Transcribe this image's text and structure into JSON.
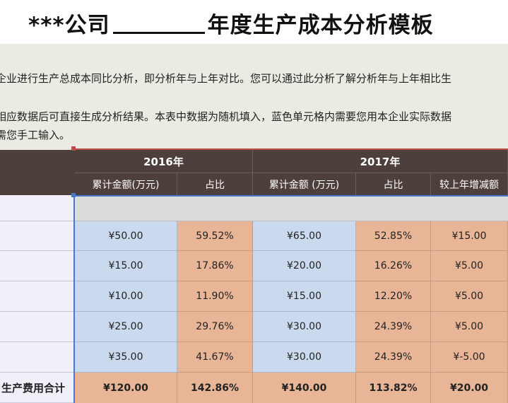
{
  "title": {
    "prefix": "***公司",
    "suffix": "年度生产成本分析模板"
  },
  "description": {
    "line1": "企业进行生产总成本同比分析，即分析年与上年对比。您可以通过此分析了解分析年与上年相比生",
    "line2": "相应数据后可直接生成分析结果。本表中数据为随机填入，蓝色单元格内需要您用本企业实际数据",
    "line3": "需您手工输入。"
  },
  "table": {
    "year_2016": "2016年",
    "year_2017": "2017年",
    "sub_headers": [
      "累计金额(万元)",
      "占比",
      "累计金额 (万元)",
      "占比",
      "较上年增减额"
    ],
    "rows": [
      {
        "amt16": "¥50.00",
        "pct16": "59.52%",
        "amt17": "¥65.00",
        "pct17": "52.85%",
        "diff": "¥15.00"
      },
      {
        "amt16": "¥15.00",
        "pct16": "17.86%",
        "amt17": "¥20.00",
        "pct17": "16.26%",
        "diff": "¥5.00"
      },
      {
        "amt16": "¥10.00",
        "pct16": "11.90%",
        "amt17": "¥15.00",
        "pct17": "12.20%",
        "diff": "¥5.00"
      },
      {
        "amt16": "¥25.00",
        "pct16": "29.76%",
        "amt17": "¥30.00",
        "pct17": "24.39%",
        "diff": "¥5.00"
      },
      {
        "amt16": "¥35.00",
        "pct16": "41.67%",
        "amt17": "¥30.00",
        "pct17": "24.39%",
        "diff": "¥-5.00"
      }
    ],
    "total": {
      "label": "生产费用合计",
      "amt16": "¥120.00",
      "pct16": "142.86%",
      "amt17": "¥140.00",
      "pct17": "113.82%",
      "diff": "¥20.00"
    }
  },
  "colors": {
    "header": "#4d3f3c",
    "input_cell": "#cbd9ee",
    "calc_cell": "#e9b597",
    "selection": "#4a78c8"
  }
}
